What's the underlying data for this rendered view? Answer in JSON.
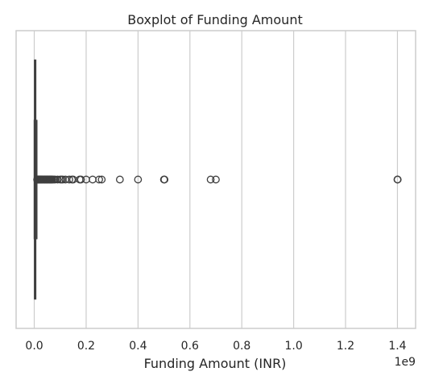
{
  "chart_data": {
    "type": "boxplot",
    "orientation": "horizontal",
    "title": "Boxplot of Funding Amount",
    "xlabel": "Funding Amount (INR)",
    "ylabel": "",
    "x_offset_label": "1e9",
    "xlim": [
      -0.07,
      1.47
    ],
    "x_ticks": [
      0.0,
      0.2,
      0.4,
      0.6,
      0.8,
      1.0,
      1.2,
      1.4
    ],
    "x_tick_labels": [
      "0.0",
      "0.2",
      "0.4",
      "0.6",
      "0.8",
      "1.0",
      "1.2",
      "1.4"
    ],
    "grid": true,
    "box": {
      "min": 0.0,
      "q1": 0.001,
      "median": 0.002,
      "q3": 0.004,
      "max": 0.01
    },
    "outliers": [
      0.011,
      0.012,
      0.013,
      0.014,
      0.015,
      0.016,
      0.018,
      0.02,
      0.022,
      0.024,
      0.026,
      0.028,
      0.03,
      0.032,
      0.035,
      0.038,
      0.04,
      0.042,
      0.045,
      0.048,
      0.05,
      0.052,
      0.055,
      0.058,
      0.06,
      0.062,
      0.065,
      0.068,
      0.07,
      0.075,
      0.08,
      0.09,
      0.1,
      0.105,
      0.11,
      0.12,
      0.135,
      0.145,
      0.15,
      0.175,
      0.18,
      0.2,
      0.225,
      0.25,
      0.26,
      0.33,
      0.4,
      0.5,
      0.502,
      0.68,
      0.7,
      1.4,
      1.401
    ],
    "colors": {
      "box": "#4a7db5",
      "lines": "#3f3f3f",
      "grid": "#cccccc"
    }
  }
}
